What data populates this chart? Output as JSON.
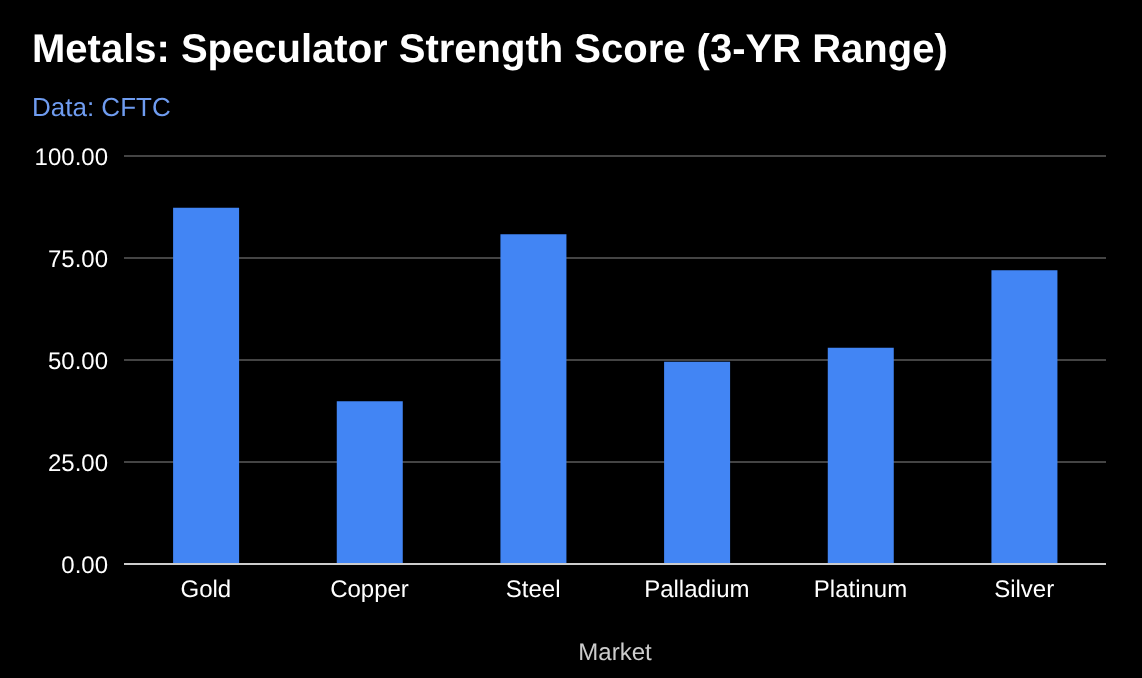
{
  "chart_data": {
    "type": "bar",
    "title": "Metals: Speculator Strength Score (3-YR Range)",
    "subtitle": "Data: CFTC",
    "xlabel": "Market",
    "categories": [
      "Gold",
      "Copper",
      "Steel",
      "Palladium",
      "Platinum",
      "Silver"
    ],
    "values": [
      87.3,
      39.9,
      80.8,
      49.6,
      53,
      72
    ],
    "color": "#4285f4",
    "ylim": [
      0,
      100
    ],
    "yticks": [
      {
        "value": 0,
        "label": "0.00"
      },
      {
        "value": 25,
        "label": "25.00"
      },
      {
        "value": 50,
        "label": "50.00"
      },
      {
        "value": 75,
        "label": "75.00"
      },
      {
        "value": 100,
        "label": "100.00"
      }
    ],
    "grid": "y",
    "legend": false
  }
}
